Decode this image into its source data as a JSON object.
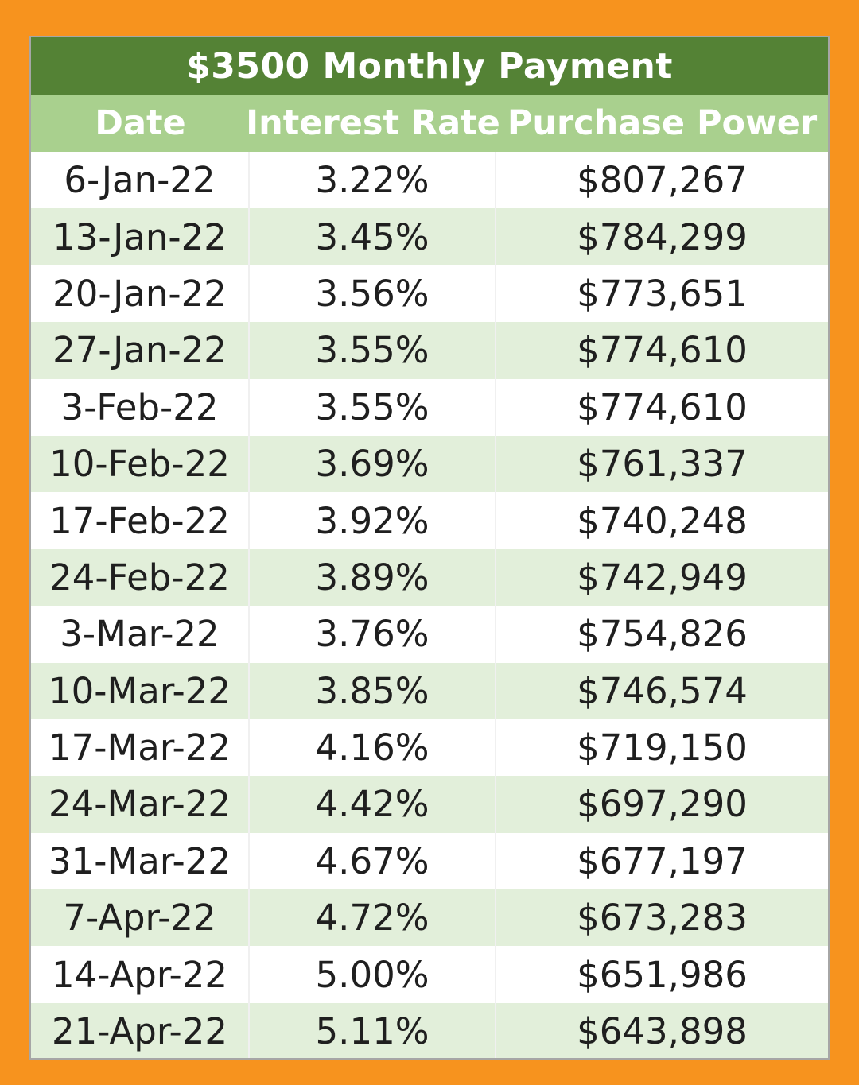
{
  "table": {
    "title": "$3500 Monthly Payment",
    "headers": {
      "date": "Date",
      "rate": "Interest Rate",
      "power": "Purchase Power"
    },
    "rows": [
      {
        "date": "6-Jan-22",
        "rate": "3.22%",
        "power": "$807,267"
      },
      {
        "date": "13-Jan-22",
        "rate": "3.45%",
        "power": "$784,299"
      },
      {
        "date": "20-Jan-22",
        "rate": "3.56%",
        "power": "$773,651"
      },
      {
        "date": "27-Jan-22",
        "rate": "3.55%",
        "power": "$774,610"
      },
      {
        "date": "3-Feb-22",
        "rate": "3.55%",
        "power": "$774,610"
      },
      {
        "date": "10-Feb-22",
        "rate": "3.69%",
        "power": "$761,337"
      },
      {
        "date": "17-Feb-22",
        "rate": "3.92%",
        "power": "$740,248"
      },
      {
        "date": "24-Feb-22",
        "rate": "3.89%",
        "power": "$742,949"
      },
      {
        "date": "3-Mar-22",
        "rate": "3.76%",
        "power": "$754,826"
      },
      {
        "date": "10-Mar-22",
        "rate": "3.85%",
        "power": "$746,574"
      },
      {
        "date": "17-Mar-22",
        "rate": "4.16%",
        "power": "$719,150"
      },
      {
        "date": "24-Mar-22",
        "rate": "4.42%",
        "power": "$697,290"
      },
      {
        "date": "31-Mar-22",
        "rate": "4.67%",
        "power": "$677,197"
      },
      {
        "date": "7-Apr-22",
        "rate": "4.72%",
        "power": "$673,283"
      },
      {
        "date": "14-Apr-22",
        "rate": "5.00%",
        "power": "$651,986"
      },
      {
        "date": "21-Apr-22",
        "rate": "5.11%",
        "power": "$643,898"
      }
    ]
  },
  "colors": {
    "background": "#f7931e",
    "title_bar": "#548235",
    "header_row": "#a9d08e",
    "row_alt": "#e2efda",
    "row_plain": "#ffffff"
  }
}
